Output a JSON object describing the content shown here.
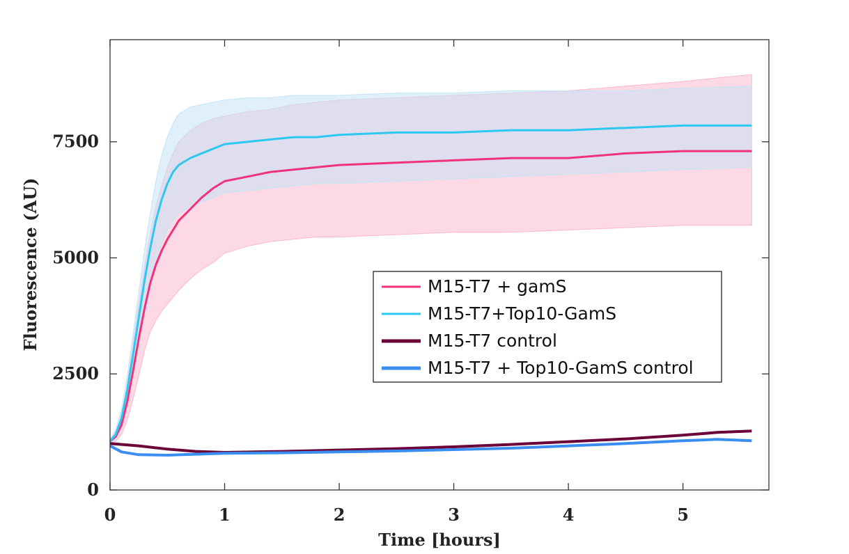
{
  "chart_data": {
    "type": "line",
    "title": "",
    "xlabel": "Time [hours]",
    "ylabel": "Fluorescence (AU)",
    "xlim": [
      0,
      5.75
    ],
    "ylim": [
      0,
      9700
    ],
    "xticks": [
      0,
      1,
      2,
      3,
      4,
      5
    ],
    "yticks": [
      0,
      2500,
      5000,
      7500
    ],
    "legend_position": "center-right",
    "grid": false,
    "series": [
      {
        "name": "M15-T7 + gamS",
        "color": "#f0327a",
        "band_color": "#fbb8cf",
        "x": [
          0,
          0.05,
          0.1,
          0.15,
          0.2,
          0.25,
          0.3,
          0.35,
          0.4,
          0.45,
          0.5,
          0.55,
          0.6,
          0.7,
          0.8,
          0.9,
          1.0,
          1.2,
          1.4,
          1.6,
          1.8,
          2.0,
          2.5,
          3.0,
          3.5,
          4.0,
          4.5,
          5.0,
          5.6
        ],
        "values": [
          1050,
          1150,
          1400,
          1900,
          2550,
          3250,
          3900,
          4450,
          4850,
          5150,
          5400,
          5600,
          5800,
          6050,
          6300,
          6500,
          6650,
          6750,
          6850,
          6900,
          6950,
          7000,
          7050,
          7100,
          7150,
          7150,
          7250,
          7300,
          7300
        ],
        "upper": [
          1100,
          1250,
          1600,
          2300,
          3150,
          4000,
          4800,
          5500,
          6100,
          6550,
          6950,
          7250,
          7500,
          7750,
          7900,
          8000,
          8050,
          8150,
          8200,
          8300,
          8350,
          8400,
          8450,
          8500,
          8550,
          8600,
          8700,
          8800,
          8950
        ],
        "lower": [
          1000,
          1050,
          1200,
          1500,
          1950,
          2450,
          3000,
          3400,
          3650,
          3850,
          4000,
          4150,
          4300,
          4550,
          4750,
          4900,
          5100,
          5250,
          5350,
          5400,
          5450,
          5450,
          5500,
          5550,
          5550,
          5600,
          5650,
          5700,
          5700
        ]
      },
      {
        "name": "M15-T7+Top10-GamS",
        "color": "#2cc8f0",
        "band_color": "#c4e4f6",
        "x": [
          0,
          0.05,
          0.1,
          0.15,
          0.2,
          0.25,
          0.3,
          0.35,
          0.4,
          0.45,
          0.5,
          0.55,
          0.6,
          0.7,
          0.8,
          0.9,
          1.0,
          1.2,
          1.4,
          1.6,
          1.8,
          2.0,
          2.5,
          3.0,
          3.5,
          4.0,
          4.5,
          5.0,
          5.6
        ],
        "values": [
          1050,
          1200,
          1550,
          2150,
          2900,
          3700,
          4500,
          5200,
          5800,
          6250,
          6600,
          6850,
          7000,
          7150,
          7250,
          7350,
          7450,
          7500,
          7550,
          7600,
          7600,
          7650,
          7700,
          7700,
          7750,
          7750,
          7800,
          7850,
          7850
        ],
        "upper": [
          1100,
          1300,
          1750,
          2450,
          3350,
          4250,
          5150,
          5950,
          6650,
          7200,
          7600,
          7900,
          8100,
          8250,
          8300,
          8350,
          8400,
          8450,
          8450,
          8500,
          8500,
          8500,
          8550,
          8550,
          8600,
          8600,
          8600,
          8650,
          8700
        ],
        "lower": [
          1000,
          1100,
          1350,
          1850,
          2450,
          3150,
          3850,
          4450,
          4950,
          5300,
          5600,
          5800,
          5950,
          6100,
          6200,
          6300,
          6400,
          6450,
          6500,
          6550,
          6600,
          6600,
          6650,
          6700,
          6750,
          6800,
          6850,
          6900,
          6950
        ]
      },
      {
        "name": "M15-T7 control",
        "color": "#6b0038",
        "x": [
          0,
          0.25,
          0.5,
          0.75,
          1.0,
          1.5,
          2.0,
          2.5,
          3.0,
          3.5,
          4.0,
          4.5,
          5.0,
          5.3,
          5.6
        ],
        "values": [
          1000,
          950,
          880,
          830,
          810,
          830,
          860,
          890,
          930,
          980,
          1040,
          1100,
          1180,
          1240,
          1270
        ]
      },
      {
        "name": "M15-T7 + Top10-GamS control",
        "color": "#3a8ef2",
        "x": [
          0,
          0.1,
          0.25,
          0.5,
          0.75,
          1.0,
          1.5,
          2.0,
          2.5,
          3.0,
          3.5,
          4.0,
          4.5,
          5.0,
          5.3,
          5.6
        ],
        "values": [
          950,
          820,
          760,
          750,
          770,
          790,
          800,
          820,
          840,
          870,
          900,
          950,
          1000,
          1060,
          1090,
          1060
        ]
      }
    ]
  }
}
